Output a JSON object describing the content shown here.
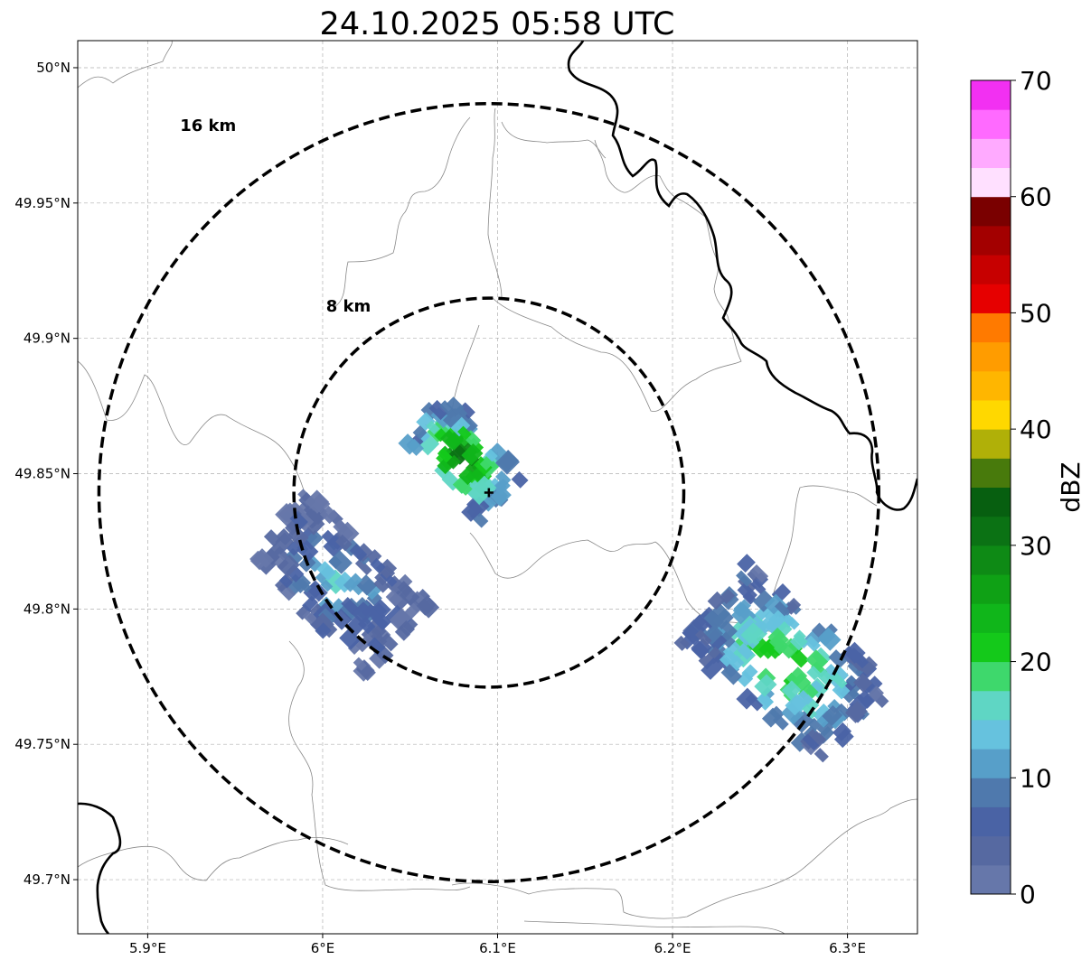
{
  "title": "24.10.2025 05:58 UTC",
  "map": {
    "lon_range": [
      5.86,
      6.34
    ],
    "lat_range": [
      49.68,
      50.01
    ],
    "x_ticks": [
      {
        "value": 5.9,
        "label": "5.9°E"
      },
      {
        "value": 6.0,
        "label": "6°E"
      },
      {
        "value": 6.1,
        "label": "6.1°E"
      },
      {
        "value": 6.2,
        "label": "6.2°E"
      },
      {
        "value": 6.3,
        "label": "6.3°E"
      }
    ],
    "y_ticks": [
      {
        "value": 50.0,
        "label": "50°N"
      },
      {
        "value": 49.95,
        "label": "49.95°N"
      },
      {
        "value": 49.9,
        "label": "49.9°N"
      },
      {
        "value": 49.85,
        "label": "49.85°N"
      },
      {
        "value": 49.8,
        "label": "49.8°N"
      },
      {
        "value": 49.75,
        "label": "49.75°N"
      },
      {
        "value": 49.7,
        "label": "49.7°N"
      }
    ],
    "grid": true,
    "center": {
      "lon": 6.095,
      "lat": 49.843
    },
    "range_rings": [
      {
        "radius_km": 8,
        "label": "8 km"
      },
      {
        "radius_km": 16,
        "label": "16 km"
      }
    ],
    "colors": {
      "ring": "#000000",
      "grid": "#b0b0b0",
      "border": "#000000",
      "admin": "#888888"
    }
  },
  "colorbar": {
    "label": "dBZ",
    "min": 0,
    "max": 70,
    "step": 2.5,
    "ticks": [
      {
        "value": 0,
        "label": "0"
      },
      {
        "value": 10,
        "label": "10"
      },
      {
        "value": 20,
        "label": "20"
      },
      {
        "value": 30,
        "label": "30"
      },
      {
        "value": 40,
        "label": "40"
      },
      {
        "value": 50,
        "label": "50"
      },
      {
        "value": 60,
        "label": "60"
      },
      {
        "value": 70,
        "label": "70"
      }
    ],
    "colors": [
      "#6677aa",
      "#5669a1",
      "#4a63a5",
      "#4f79ad",
      "#579fc9",
      "#66c2de",
      "#5fd6c4",
      "#3ed86c",
      "#14c91a",
      "#10b61a",
      "#0fa115",
      "#0e8a15",
      "#0b7214",
      "#075f10",
      "#487a0c",
      "#b0b008",
      "#ffd800",
      "#ffb600",
      "#ff9c00",
      "#ff7a00",
      "#e60000",
      "#c70000",
      "#a30000",
      "#7a0000",
      "#ffe0ff",
      "#ffaaff",
      "#ff6aff",
      "#f230f2"
    ]
  },
  "storm_cells": [
    {
      "lon": 6.08,
      "lat": 49.856,
      "spread": 0.03,
      "angle": -42,
      "peak_dbz": 33,
      "base_dbz": 8,
      "count": 90
    },
    {
      "lon": 6.01,
      "lat": 49.81,
      "spread": 0.045,
      "angle": -45,
      "peak_dbz": 14,
      "base_dbz": 2,
      "count": 150
    },
    {
      "lon": 6.265,
      "lat": 49.78,
      "spread": 0.05,
      "angle": -50,
      "peak_dbz": 26,
      "base_dbz": 5,
      "count": 190
    }
  ]
}
